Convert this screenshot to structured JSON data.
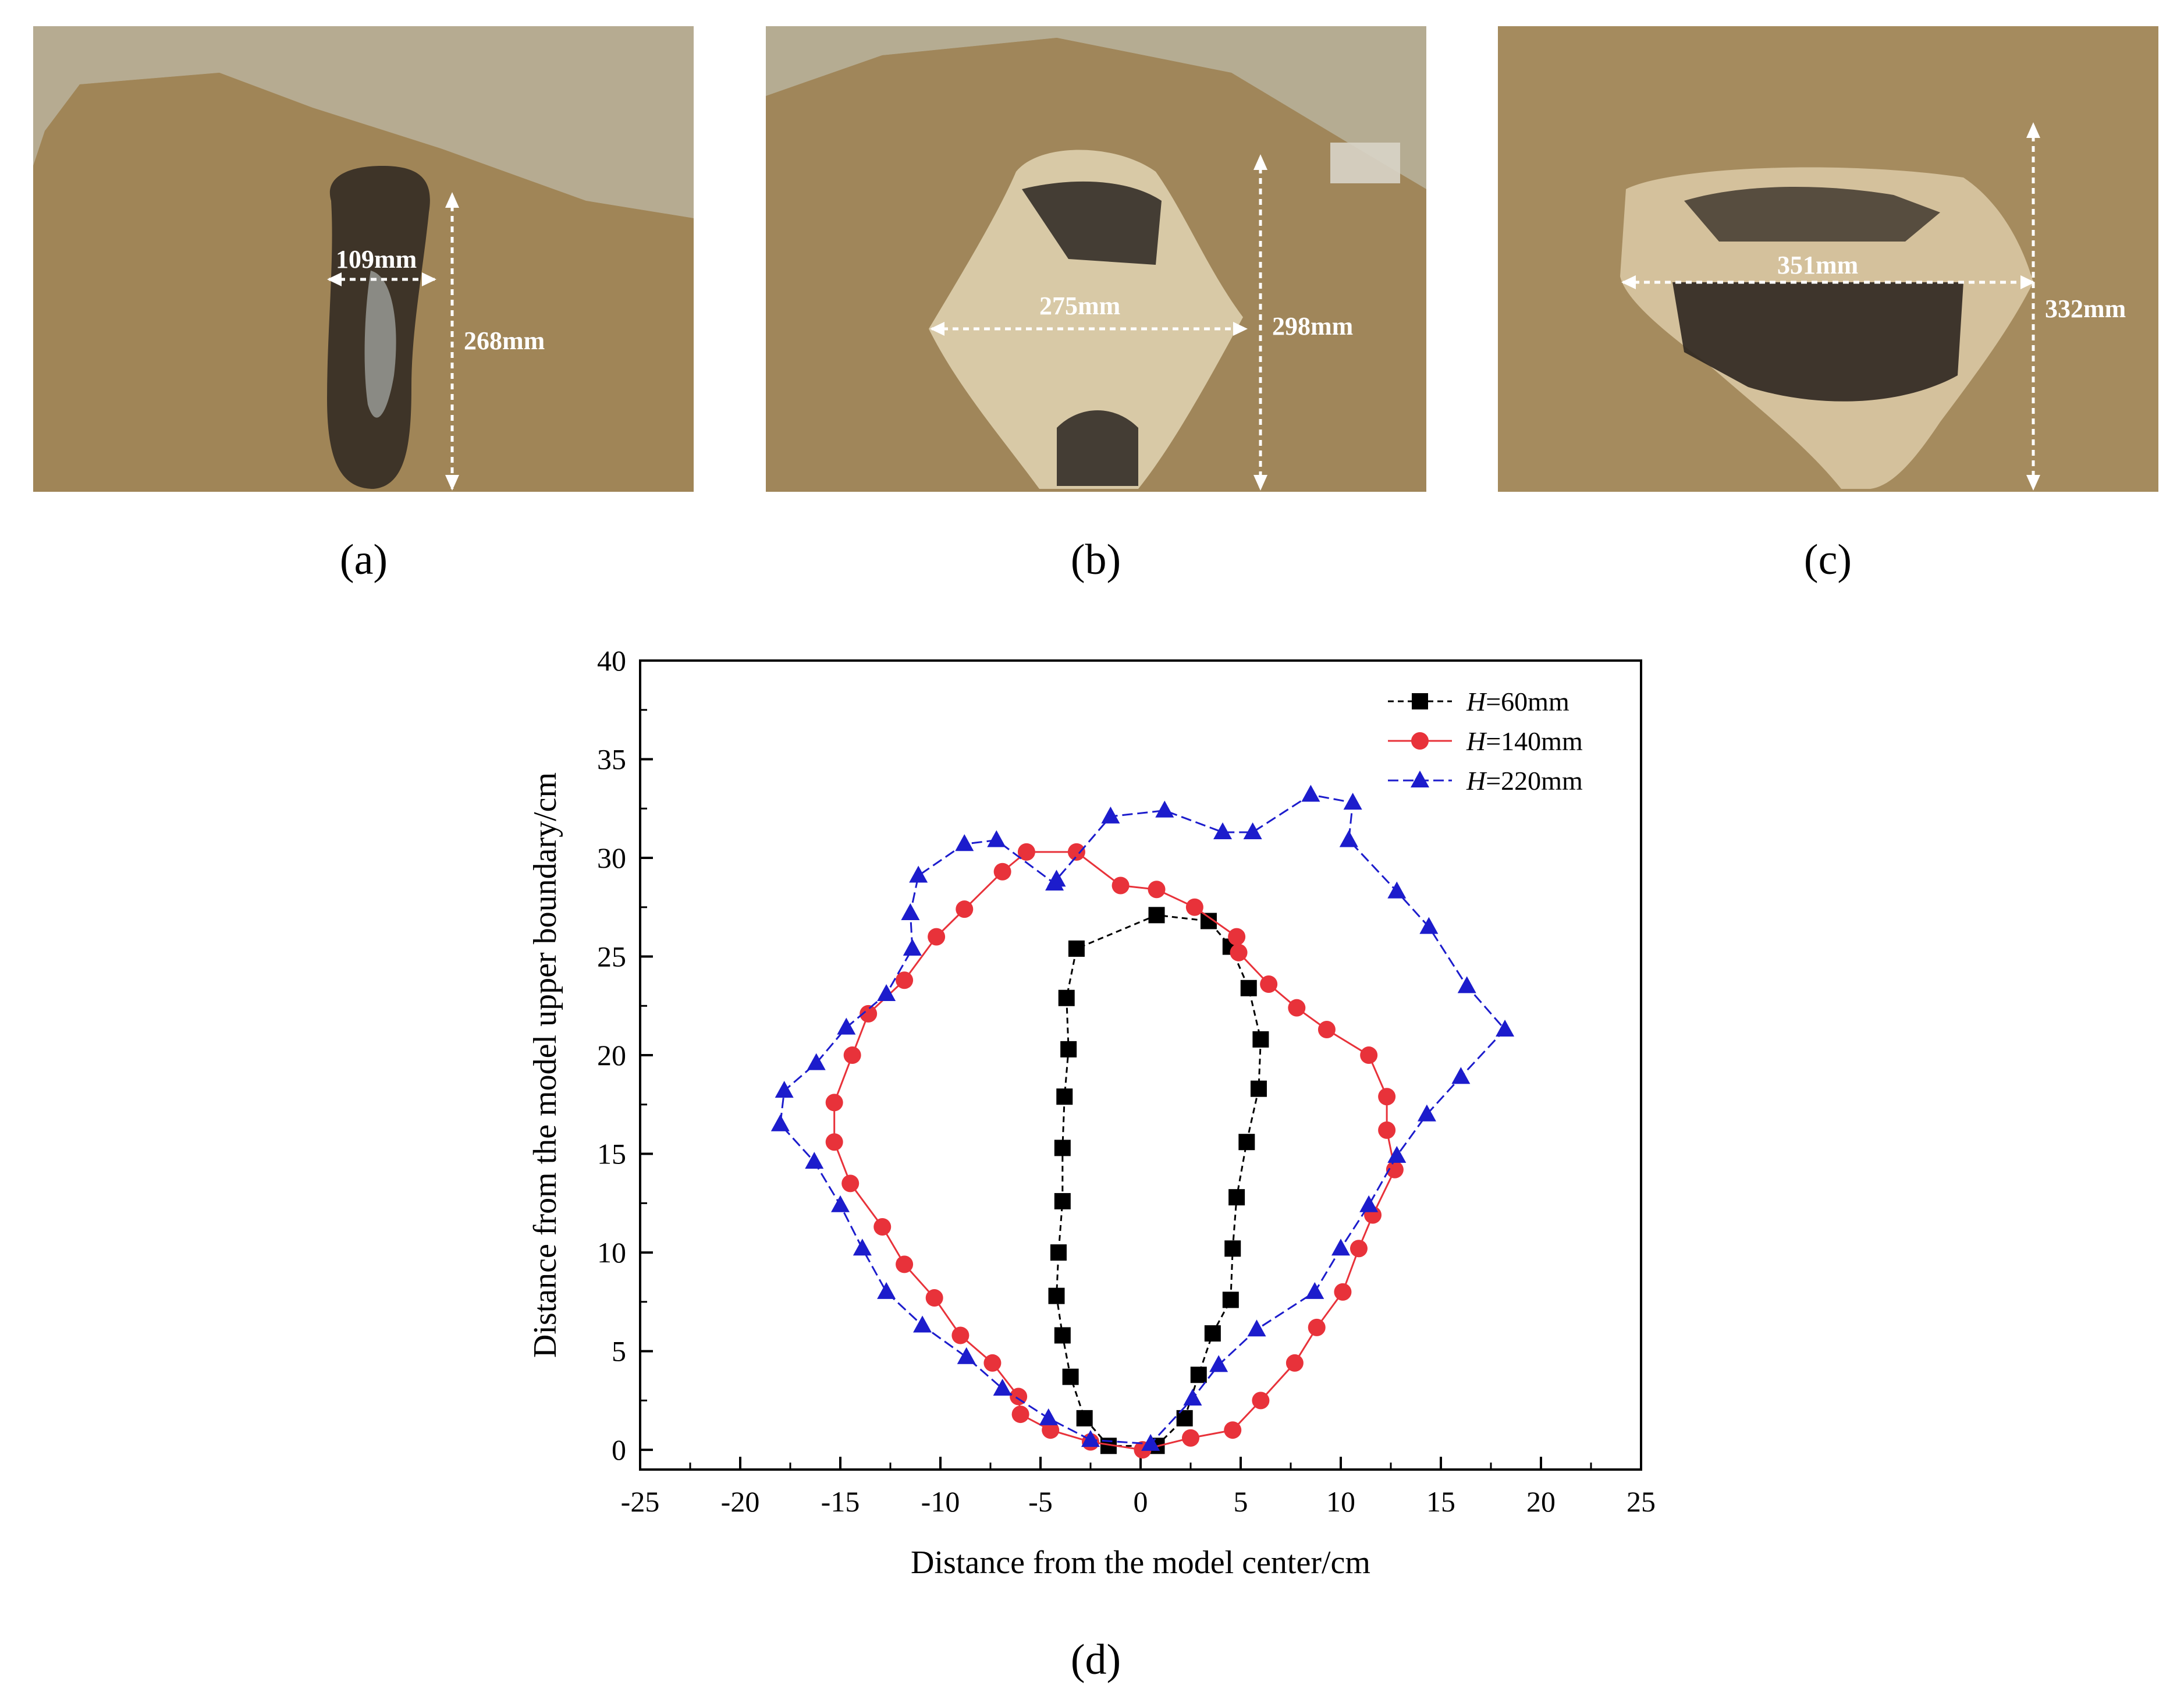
{
  "panels": {
    "a": {
      "label": "(a)",
      "width_label": "109mm",
      "height_label": "268mm"
    },
    "b": {
      "label": "(b)",
      "width_label": "275mm",
      "height_label": "298mm"
    },
    "c": {
      "label": "(c)",
      "width_label": "351mm",
      "height_label": "332mm"
    },
    "d": {
      "label": "(d)"
    }
  },
  "chart_data": {
    "type": "scatter",
    "xlabel": "Distance from the model center/cm",
    "ylabel": "Distance from the model upper boundary/cm",
    "xlim": [
      -25,
      25
    ],
    "ylim": [
      -1,
      40
    ],
    "xticks": [
      -25,
      -20,
      -15,
      -10,
      -5,
      0,
      5,
      10,
      15,
      20,
      25
    ],
    "yticks": [
      0,
      5,
      10,
      15,
      20,
      25,
      30,
      35,
      40
    ],
    "legend_position": "top-right",
    "series": [
      {
        "name_prefix": "H",
        "name_suffix": "=60mm",
        "color": "#000000",
        "marker": "square",
        "x": [
          -1.6,
          -2.8,
          -3.5,
          -3.9,
          -4.2,
          -4.1,
          -3.9,
          -3.9,
          -3.8,
          -3.6,
          -3.7,
          -3.2,
          0.8,
          3.4,
          4.5,
          5.4,
          6.0,
          5.9,
          5.3,
          4.8,
          4.6,
          4.5,
          3.6,
          2.9,
          2.2,
          0.8
        ],
        "y": [
          0.2,
          1.6,
          3.7,
          5.8,
          7.8,
          10.0,
          12.6,
          15.3,
          17.9,
          20.3,
          22.9,
          25.4,
          27.1,
          26.8,
          25.5,
          23.4,
          20.8,
          18.3,
          15.6,
          12.8,
          10.2,
          7.6,
          5.9,
          3.8,
          1.6,
          0.2
        ]
      },
      {
        "name_prefix": "H",
        "name_suffix": "=140mm",
        "color": "#e8323a",
        "marker": "circle",
        "x": [
          -2.5,
          -4.5,
          -6.0,
          -6.1,
          -7.4,
          -9.0,
          -10.3,
          -11.8,
          -12.9,
          -14.5,
          -15.3,
          -15.3,
          -14.4,
          -13.6,
          -11.8,
          -10.2,
          -8.8,
          -6.9,
          -5.7,
          -3.2,
          -1.0,
          0.8,
          2.7,
          4.8,
          4.9,
          6.4,
          7.8,
          9.3,
          11.4,
          12.3,
          12.3,
          12.7,
          11.6,
          10.9,
          10.1,
          8.8,
          7.7,
          6.0,
          4.6,
          2.5,
          0.1
        ],
        "y": [
          0.4,
          1.0,
          1.8,
          2.7,
          4.4,
          5.8,
          7.7,
          9.4,
          11.3,
          13.5,
          15.6,
          17.6,
          20.0,
          22.1,
          23.8,
          26.0,
          27.4,
          29.3,
          30.3,
          30.3,
          28.6,
          28.4,
          27.5,
          26.0,
          25.2,
          23.6,
          22.4,
          21.3,
          20.0,
          17.9,
          16.2,
          14.2,
          11.9,
          10.2,
          8.0,
          6.2,
          4.4,
          2.5,
          1.0,
          0.6,
          0.0
        ]
      },
      {
        "name_prefix": "H",
        "name_suffix": "=220mm",
        "color": "#1c1ccc",
        "marker": "triangle",
        "x": [
          -2.5,
          -4.6,
          -6.9,
          -8.7,
          -10.9,
          -12.7,
          -13.9,
          -15.0,
          -16.3,
          -18.0,
          -17.8,
          -16.2,
          -14.7,
          -12.7,
          -11.4,
          -11.5,
          -11.1,
          -8.8,
          -7.2,
          -4.3,
          -4.2,
          -1.5,
          1.2,
          4.1,
          5.6,
          8.5,
          10.6,
          10.4,
          12.8,
          14.4,
          16.3,
          18.2,
          16.0,
          14.3,
          12.8,
          11.4,
          10.0,
          8.7,
          5.8,
          3.9,
          2.6,
          0.5
        ],
        "y": [
          0.5,
          1.6,
          3.1,
          4.7,
          6.3,
          8.0,
          10.2,
          12.4,
          14.6,
          16.5,
          18.2,
          19.6,
          21.4,
          23.1,
          25.4,
          27.2,
          29.1,
          30.7,
          30.9,
          28.7,
          28.9,
          32.1,
          32.4,
          31.3,
          31.3,
          33.2,
          32.8,
          30.9,
          28.3,
          26.5,
          23.5,
          21.3,
          18.9,
          17.0,
          14.9,
          12.4,
          10.2,
          8.0,
          6.1,
          4.3,
          2.6,
          0.3
        ]
      }
    ]
  }
}
